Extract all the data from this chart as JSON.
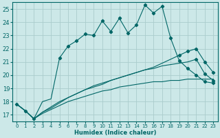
{
  "xlabel": "Humidex (Indice chaleur)",
  "xlim": [
    -0.5,
    23.5
  ],
  "ylim": [
    16.5,
    25.5
  ],
  "yticks": [
    17,
    18,
    19,
    20,
    21,
    22,
    23,
    24,
    25
  ],
  "xticks": [
    0,
    1,
    2,
    3,
    4,
    5,
    6,
    7,
    8,
    9,
    10,
    11,
    12,
    13,
    14,
    15,
    16,
    17,
    18,
    19,
    20,
    21,
    22,
    23
  ],
  "bg_color": "#cce8e8",
  "grid_color": "#aacccc",
  "line_color": "#006666",
  "curve_main": [
    17.8,
    17.3,
    16.7,
    18.0,
    18.2,
    21.3,
    22.2,
    22.6,
    23.1,
    23.0,
    24.1,
    23.3,
    24.3,
    23.2,
    23.8,
    25.3,
    24.7,
    25.2,
    22.8,
    21.1,
    20.5,
    20.0,
    19.5,
    19.4
  ],
  "curve_flat": [
    17.8,
    17.3,
    16.7,
    17.1,
    17.4,
    17.7,
    18.0,
    18.2,
    18.4,
    18.6,
    18.8,
    18.9,
    19.1,
    19.2,
    19.3,
    19.4,
    19.5,
    19.5,
    19.6,
    19.6,
    19.7,
    19.7,
    19.7,
    19.7
  ],
  "curve_mid1": [
    17.8,
    17.3,
    16.7,
    17.2,
    17.5,
    17.9,
    18.3,
    18.6,
    18.9,
    19.2,
    19.4,
    19.6,
    19.8,
    20.0,
    20.2,
    20.4,
    20.5,
    20.7,
    20.8,
    20.9,
    21.0,
    21.2,
    20.1,
    19.6
  ],
  "curve_mid2": [
    17.8,
    17.3,
    16.7,
    17.2,
    17.6,
    18.0,
    18.3,
    18.6,
    18.9,
    19.1,
    19.3,
    19.6,
    19.8,
    20.0,
    20.2,
    20.4,
    20.6,
    20.9,
    21.2,
    21.5,
    21.8,
    22.0,
    21.0,
    20.2
  ],
  "markers_main": [
    0,
    1,
    2,
    5,
    6,
    7,
    8,
    9,
    10,
    11,
    12,
    13,
    14,
    15,
    16,
    17,
    18,
    19,
    20,
    21,
    22,
    23
  ],
  "markers_mid1": [
    21,
    22,
    23
  ],
  "markers_mid2": [
    19,
    20,
    21,
    22,
    23
  ]
}
